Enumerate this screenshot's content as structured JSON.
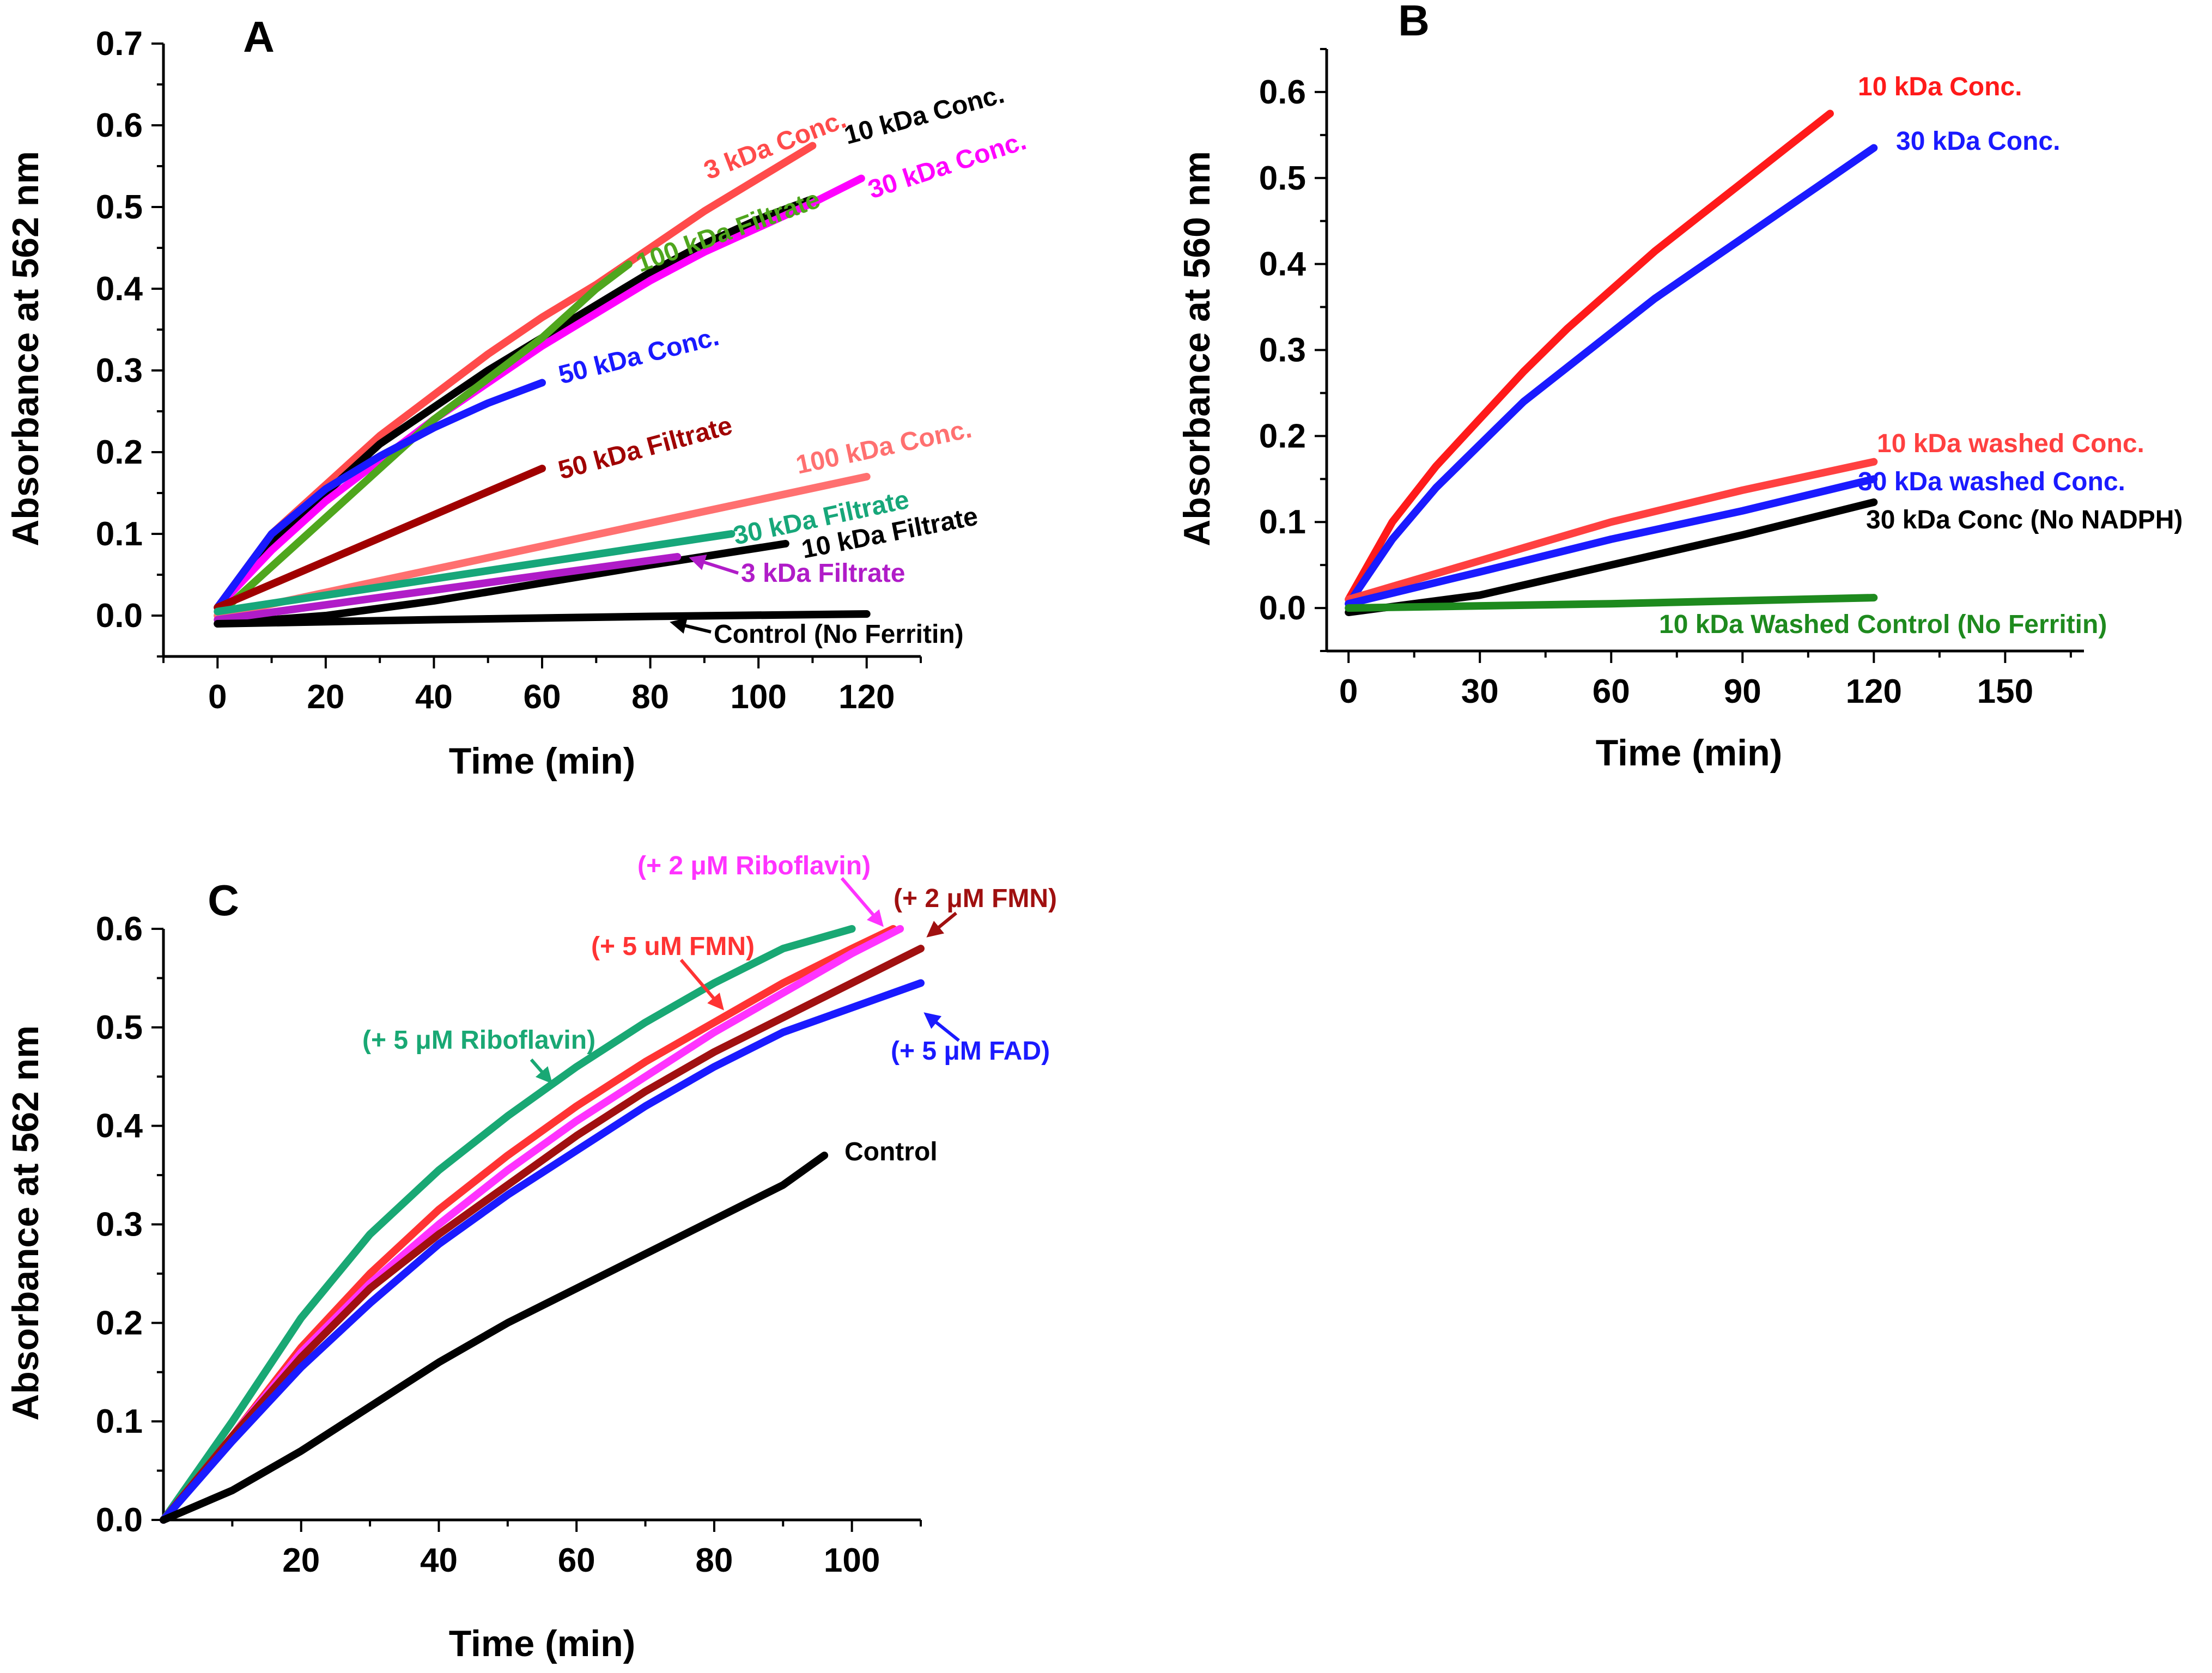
{
  "chart_data": [
    {
      "panel": "A",
      "type": "line",
      "xlabel": "Time (min)",
      "ylabel": "Absorbance at 562 nm",
      "xlim": [
        -10,
        130
      ],
      "ylim": [
        -0.05,
        0.7
      ],
      "xticks": [
        "0",
        "20",
        "40",
        "60",
        "80",
        "100",
        "120"
      ],
      "yticks": [
        "0.0",
        "0.1",
        "0.2",
        "0.3",
        "0.4",
        "0.5",
        "0.6",
        "0.7"
      ],
      "series": [
        {
          "name": "3 kDa Conc.",
          "color": "#ff4b4b",
          "x": [
            0,
            10,
            20,
            30,
            40,
            50,
            60,
            70,
            80,
            90,
            100,
            110
          ],
          "y": [
            0.01,
            0.1,
            0.16,
            0.22,
            0.27,
            0.32,
            0.365,
            0.405,
            0.45,
            0.495,
            0.535,
            0.575
          ]
        },
        {
          "name": "10 kDa Conc.",
          "color": "#000000",
          "x": [
            0,
            10,
            20,
            30,
            40,
            50,
            60,
            70,
            80,
            90,
            100,
            110
          ],
          "y": [
            0.01,
            0.09,
            0.15,
            0.21,
            0.255,
            0.3,
            0.34,
            0.38,
            0.42,
            0.455,
            0.485,
            0.51
          ]
        },
        {
          "name": "30 kDa Conc.",
          "color": "#ff00ff",
          "x": [
            0,
            10,
            20,
            30,
            40,
            50,
            60,
            70,
            80,
            90,
            100,
            110,
            119
          ],
          "y": [
            0.01,
            0.08,
            0.14,
            0.19,
            0.24,
            0.285,
            0.33,
            0.37,
            0.41,
            0.445,
            0.475,
            0.505,
            0.535
          ]
        },
        {
          "name": "100 kDa Filtrate",
          "color": "#4fa61d",
          "x": [
            0,
            10,
            20,
            30,
            40,
            50,
            60,
            70,
            76
          ],
          "y": [
            0.0,
            0.06,
            0.12,
            0.18,
            0.24,
            0.29,
            0.34,
            0.4,
            0.43
          ]
        },
        {
          "name": "50 kDa Conc.",
          "color": "#1919ff",
          "x": [
            0,
            10,
            20,
            30,
            40,
            50,
            60
          ],
          "y": [
            0.01,
            0.1,
            0.155,
            0.195,
            0.23,
            0.26,
            0.285
          ]
        },
        {
          "name": "50 kDa Filtrate",
          "color": "#a00000",
          "x": [
            0,
            60
          ],
          "y": [
            0.01,
            0.18
          ]
        },
        {
          "name": "100 kDa Conc.",
          "color": "#ff7070",
          "x": [
            0,
            120
          ],
          "y": [
            0.0,
            0.17
          ]
        },
        {
          "name": "30 kDa Filtrate",
          "color": "#17a77a",
          "x": [
            0,
            95
          ],
          "y": [
            0.005,
            0.1
          ]
        },
        {
          "name": "10 kDa Filtrate",
          "color": "#000000",
          "x": [
            0,
            20,
            40,
            60,
            80,
            105
          ],
          "y": [
            -0.01,
            0.0,
            0.018,
            0.04,
            0.062,
            0.088
          ]
        },
        {
          "name": "3 kDa Filtrate",
          "color": "#b01cc8",
          "x": [
            0,
            85
          ],
          "y": [
            -0.005,
            0.072
          ]
        },
        {
          "name": "Control (No Ferritin)",
          "color": "#000000",
          "x": [
            0,
            40,
            80,
            120
          ],
          "y": [
            -0.01,
            -0.005,
            -0.001,
            0.002
          ]
        }
      ]
    },
    {
      "panel": "B",
      "type": "line",
      "xlabel": "Time (min)",
      "ylabel": "Absorbance at 560 nm",
      "xlim": [
        -5,
        168
      ],
      "ylim": [
        -0.05,
        0.65
      ],
      "xticks": [
        "0",
        "30",
        "60",
        "90",
        "120",
        "150"
      ],
      "yticks": [
        "0.0",
        "0.1",
        "0.2",
        "0.3",
        "0.4",
        "0.5",
        "0.6"
      ],
      "series": [
        {
          "name": "10 kDa Conc.",
          "color": "#ff1a1a",
          "x": [
            0,
            10,
            20,
            30,
            40,
            50,
            60,
            70,
            80,
            90,
            100,
            110
          ],
          "y": [
            0.01,
            0.1,
            0.165,
            0.22,
            0.275,
            0.325,
            0.37,
            0.415,
            0.455,
            0.495,
            0.535,
            0.575
          ]
        },
        {
          "name": "30 kDa Conc.",
          "color": "#1a1aff",
          "x": [
            0,
            10,
            20,
            30,
            40,
            50,
            60,
            70,
            80,
            90,
            100,
            110,
            120
          ],
          "y": [
            0.005,
            0.08,
            0.14,
            0.19,
            0.24,
            0.28,
            0.32,
            0.36,
            0.395,
            0.43,
            0.465,
            0.5,
            0.535
          ]
        },
        {
          "name": "10 kDa washed Conc.",
          "color": "#ff4040",
          "x": [
            0,
            30,
            60,
            90,
            120
          ],
          "y": [
            0.01,
            0.055,
            0.1,
            0.137,
            0.17
          ]
        },
        {
          "name": "30 kDa washed Conc.",
          "color": "#1a1aff",
          "x": [
            0,
            30,
            60,
            90,
            120
          ],
          "y": [
            0.005,
            0.042,
            0.08,
            0.113,
            0.15
          ]
        },
        {
          "name": "30 kDa Conc (No NADPH)",
          "color": "#000000",
          "x": [
            0,
            30,
            60,
            90,
            120
          ],
          "y": [
            -0.005,
            0.015,
            0.05,
            0.085,
            0.123
          ]
        },
        {
          "name": "10 kDa Washed Control  (No Ferritin)",
          "color": "#1e8a1e",
          "x": [
            0,
            60,
            120
          ],
          "y": [
            0.0,
            0.005,
            0.012
          ]
        }
      ]
    },
    {
      "panel": "C",
      "type": "line",
      "xlabel": "Time (min)",
      "ylabel": "Absorbance at 562 nm",
      "xlim": [
        0,
        110
      ],
      "ylim": [
        0,
        0.6
      ],
      "xticks": [
        "20",
        "40",
        "60",
        "80",
        "100"
      ],
      "yticks": [
        "0.0",
        "0.1",
        "0.2",
        "0.3",
        "0.4",
        "0.5",
        "0.6"
      ],
      "series": [
        {
          "name": "(+ 5 μM Riboflavin)",
          "color": "#19a874",
          "x": [
            0,
            10,
            20,
            30,
            40,
            50,
            60,
            70,
            80,
            90,
            100
          ],
          "y": [
            0.0,
            0.1,
            0.205,
            0.29,
            0.355,
            0.41,
            0.46,
            0.505,
            0.545,
            0.58,
            0.6
          ]
        },
        {
          "name": "(+ 5 uM FMN)",
          "color": "#ff3333",
          "x": [
            0,
            10,
            20,
            30,
            40,
            50,
            60,
            70,
            80,
            90,
            100,
            106
          ],
          "y": [
            0.0,
            0.085,
            0.175,
            0.25,
            0.315,
            0.37,
            0.42,
            0.465,
            0.505,
            0.545,
            0.58,
            0.6
          ]
        },
        {
          "name": "(+ 2 μM Riboflavin)",
          "color": "#ff33ff",
          "x": [
            0,
            10,
            20,
            30,
            40,
            50,
            60,
            70,
            80,
            90,
            100,
            107
          ],
          "y": [
            0.0,
            0.085,
            0.17,
            0.24,
            0.3,
            0.355,
            0.405,
            0.45,
            0.495,
            0.535,
            0.575,
            0.6
          ]
        },
        {
          "name": "(+ 2 μM FMN)",
          "color": "#a01010",
          "x": [
            0,
            10,
            20,
            30,
            40,
            50,
            60,
            70,
            80,
            90,
            100,
            110
          ],
          "y": [
            0.0,
            0.085,
            0.165,
            0.235,
            0.29,
            0.34,
            0.39,
            0.435,
            0.475,
            0.51,
            0.545,
            0.58
          ]
        },
        {
          "name": "(+ 5 μM FAD)",
          "color": "#1a1aff",
          "x": [
            0,
            10,
            20,
            30,
            40,
            50,
            60,
            70,
            80,
            90,
            100,
            110
          ],
          "y": [
            0.0,
            0.08,
            0.155,
            0.22,
            0.28,
            0.33,
            0.375,
            0.42,
            0.46,
            0.495,
            0.52,
            0.545
          ]
        },
        {
          "name": "Control",
          "color": "#000000",
          "x": [
            0,
            10,
            20,
            30,
            40,
            50,
            60,
            70,
            80,
            90,
            96
          ],
          "y": [
            0.0,
            0.03,
            0.07,
            0.115,
            0.16,
            0.2,
            0.235,
            0.27,
            0.305,
            0.34,
            0.37
          ]
        }
      ]
    }
  ]
}
